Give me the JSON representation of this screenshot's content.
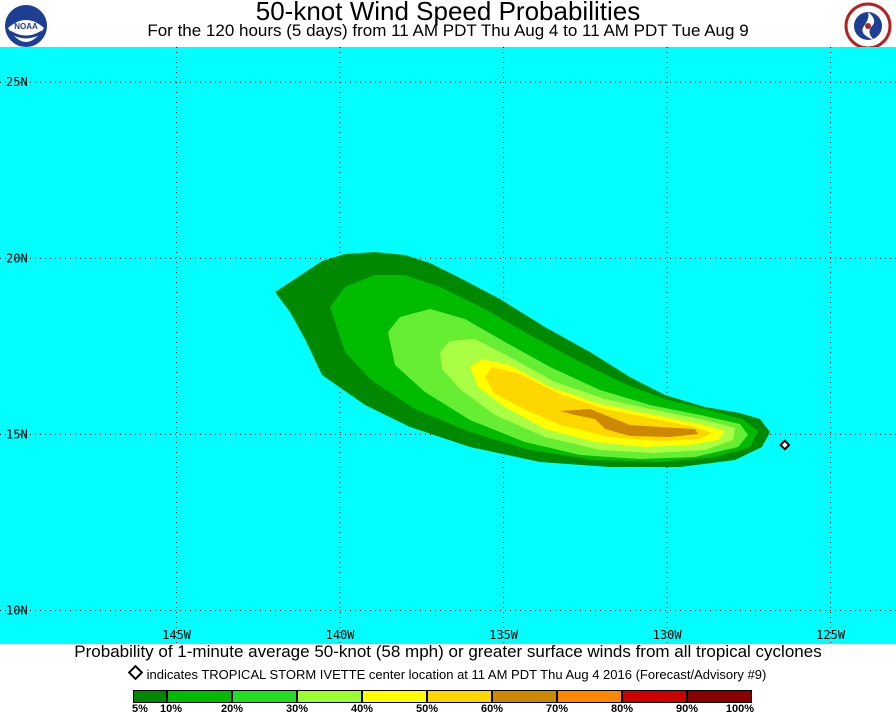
{
  "header": {
    "title": "50-knot Wind Speed Probabilities",
    "subtitle": "For the 120 hours (5 days) from 11 AM PDT Thu Aug 4 to 11 AM PDT Tue Aug 9",
    "left_logo": "noaa-logo-icon",
    "left_logo_text": "NOAA",
    "right_logo": "nws-logo-icon"
  },
  "map": {
    "background_color": "#00ffff",
    "lat_labels": [
      "25N",
      "20N",
      "15N",
      "10N"
    ],
    "lon_labels": [
      "145W",
      "140W",
      "135W",
      "130W",
      "125W"
    ],
    "lat_values": [
      25,
      20,
      15,
      10
    ],
    "lon_values": [
      145,
      140,
      135,
      130,
      125
    ],
    "lon_range": [
      150.4,
      123.0
    ],
    "lat_range": [
      26.0,
      9.05
    ],
    "storm_center": {
      "lat": 14.7,
      "lon": 126.4
    }
  },
  "caption": {
    "line1": "Probability of 1-minute average 50-knot (58 mph) or greater surface winds from all tropical cyclones",
    "line2": "indicates TROPICAL STORM IVETTE center location at 11 AM PDT Thu Aug 4 2016 (Forecast/Advisory #9)"
  },
  "legend": {
    "labels": [
      "5%",
      "10%",
      "20%",
      "30%",
      "40%",
      "50%",
      "60%",
      "70%",
      "80%",
      "90%",
      "100%"
    ],
    "colors": [
      "#008800",
      "#00bb00",
      "#22dd22",
      "#99ff33",
      "#ffff00",
      "#ffd700",
      "#cc8800",
      "#ff8800",
      "#cc0000",
      "#880000",
      "#880088"
    ]
  }
}
